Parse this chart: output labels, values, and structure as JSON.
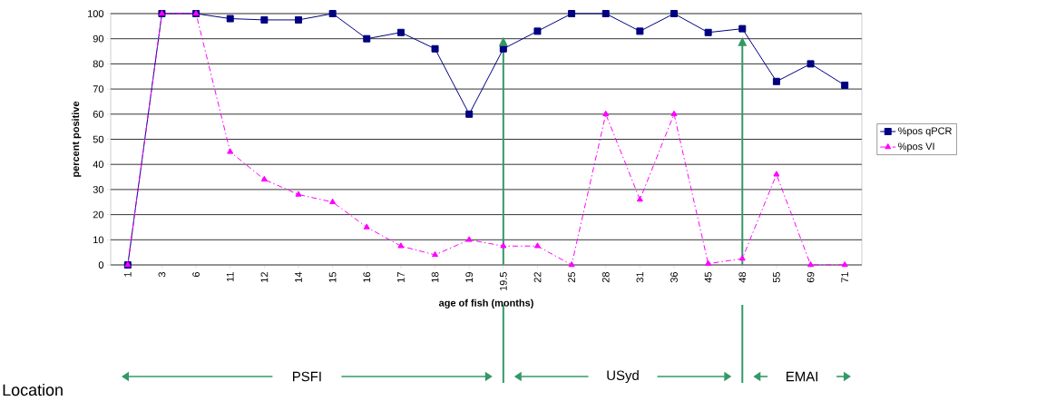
{
  "chart_data": {
    "type": "line",
    "xlabel": "age of fish (months)",
    "ylabel": "percent positive",
    "categories": [
      "1",
      "3",
      "6",
      "11",
      "12",
      "14",
      "15",
      "16",
      "17",
      "18",
      "19",
      "19.5",
      "22",
      "25",
      "28",
      "31",
      "36",
      "45",
      "48",
      "55",
      "69",
      "71"
    ],
    "series": [
      {
        "name": "%pos qPCR",
        "color": "#000080",
        "marker": "square",
        "line_style": "solid",
        "values": [
          0,
          100,
          100,
          98,
          97.5,
          97.5,
          100,
          90,
          92.5,
          86,
          60,
          86,
          93,
          100,
          100,
          93,
          100,
          92.5,
          94,
          73,
          80,
          71.5
        ]
      },
      {
        "name": "%pos VI",
        "color": "#ff00ff",
        "marker": "triangle",
        "line_style": "dashdot",
        "values": [
          0,
          100,
          100,
          45,
          34,
          28,
          25,
          15,
          7.5,
          4,
          10,
          7.5,
          7.5,
          0,
          60,
          26,
          60,
          0.5,
          2.5,
          36,
          0,
          0
        ]
      }
    ],
    "ylim": [
      0,
      100
    ],
    "yticks": [
      0,
      10,
      20,
      30,
      40,
      50,
      60,
      70,
      80,
      90,
      100
    ],
    "grid": "y",
    "legend": "right",
    "ref_lines": [
      {
        "axis": "x",
        "value": "19.5",
        "color": "#339966"
      },
      {
        "axis": "x",
        "value": "48",
        "color": "#339966"
      }
    ],
    "annotations": [
      "Location",
      "PSFI",
      "USyd",
      "EMAI"
    ]
  }
}
